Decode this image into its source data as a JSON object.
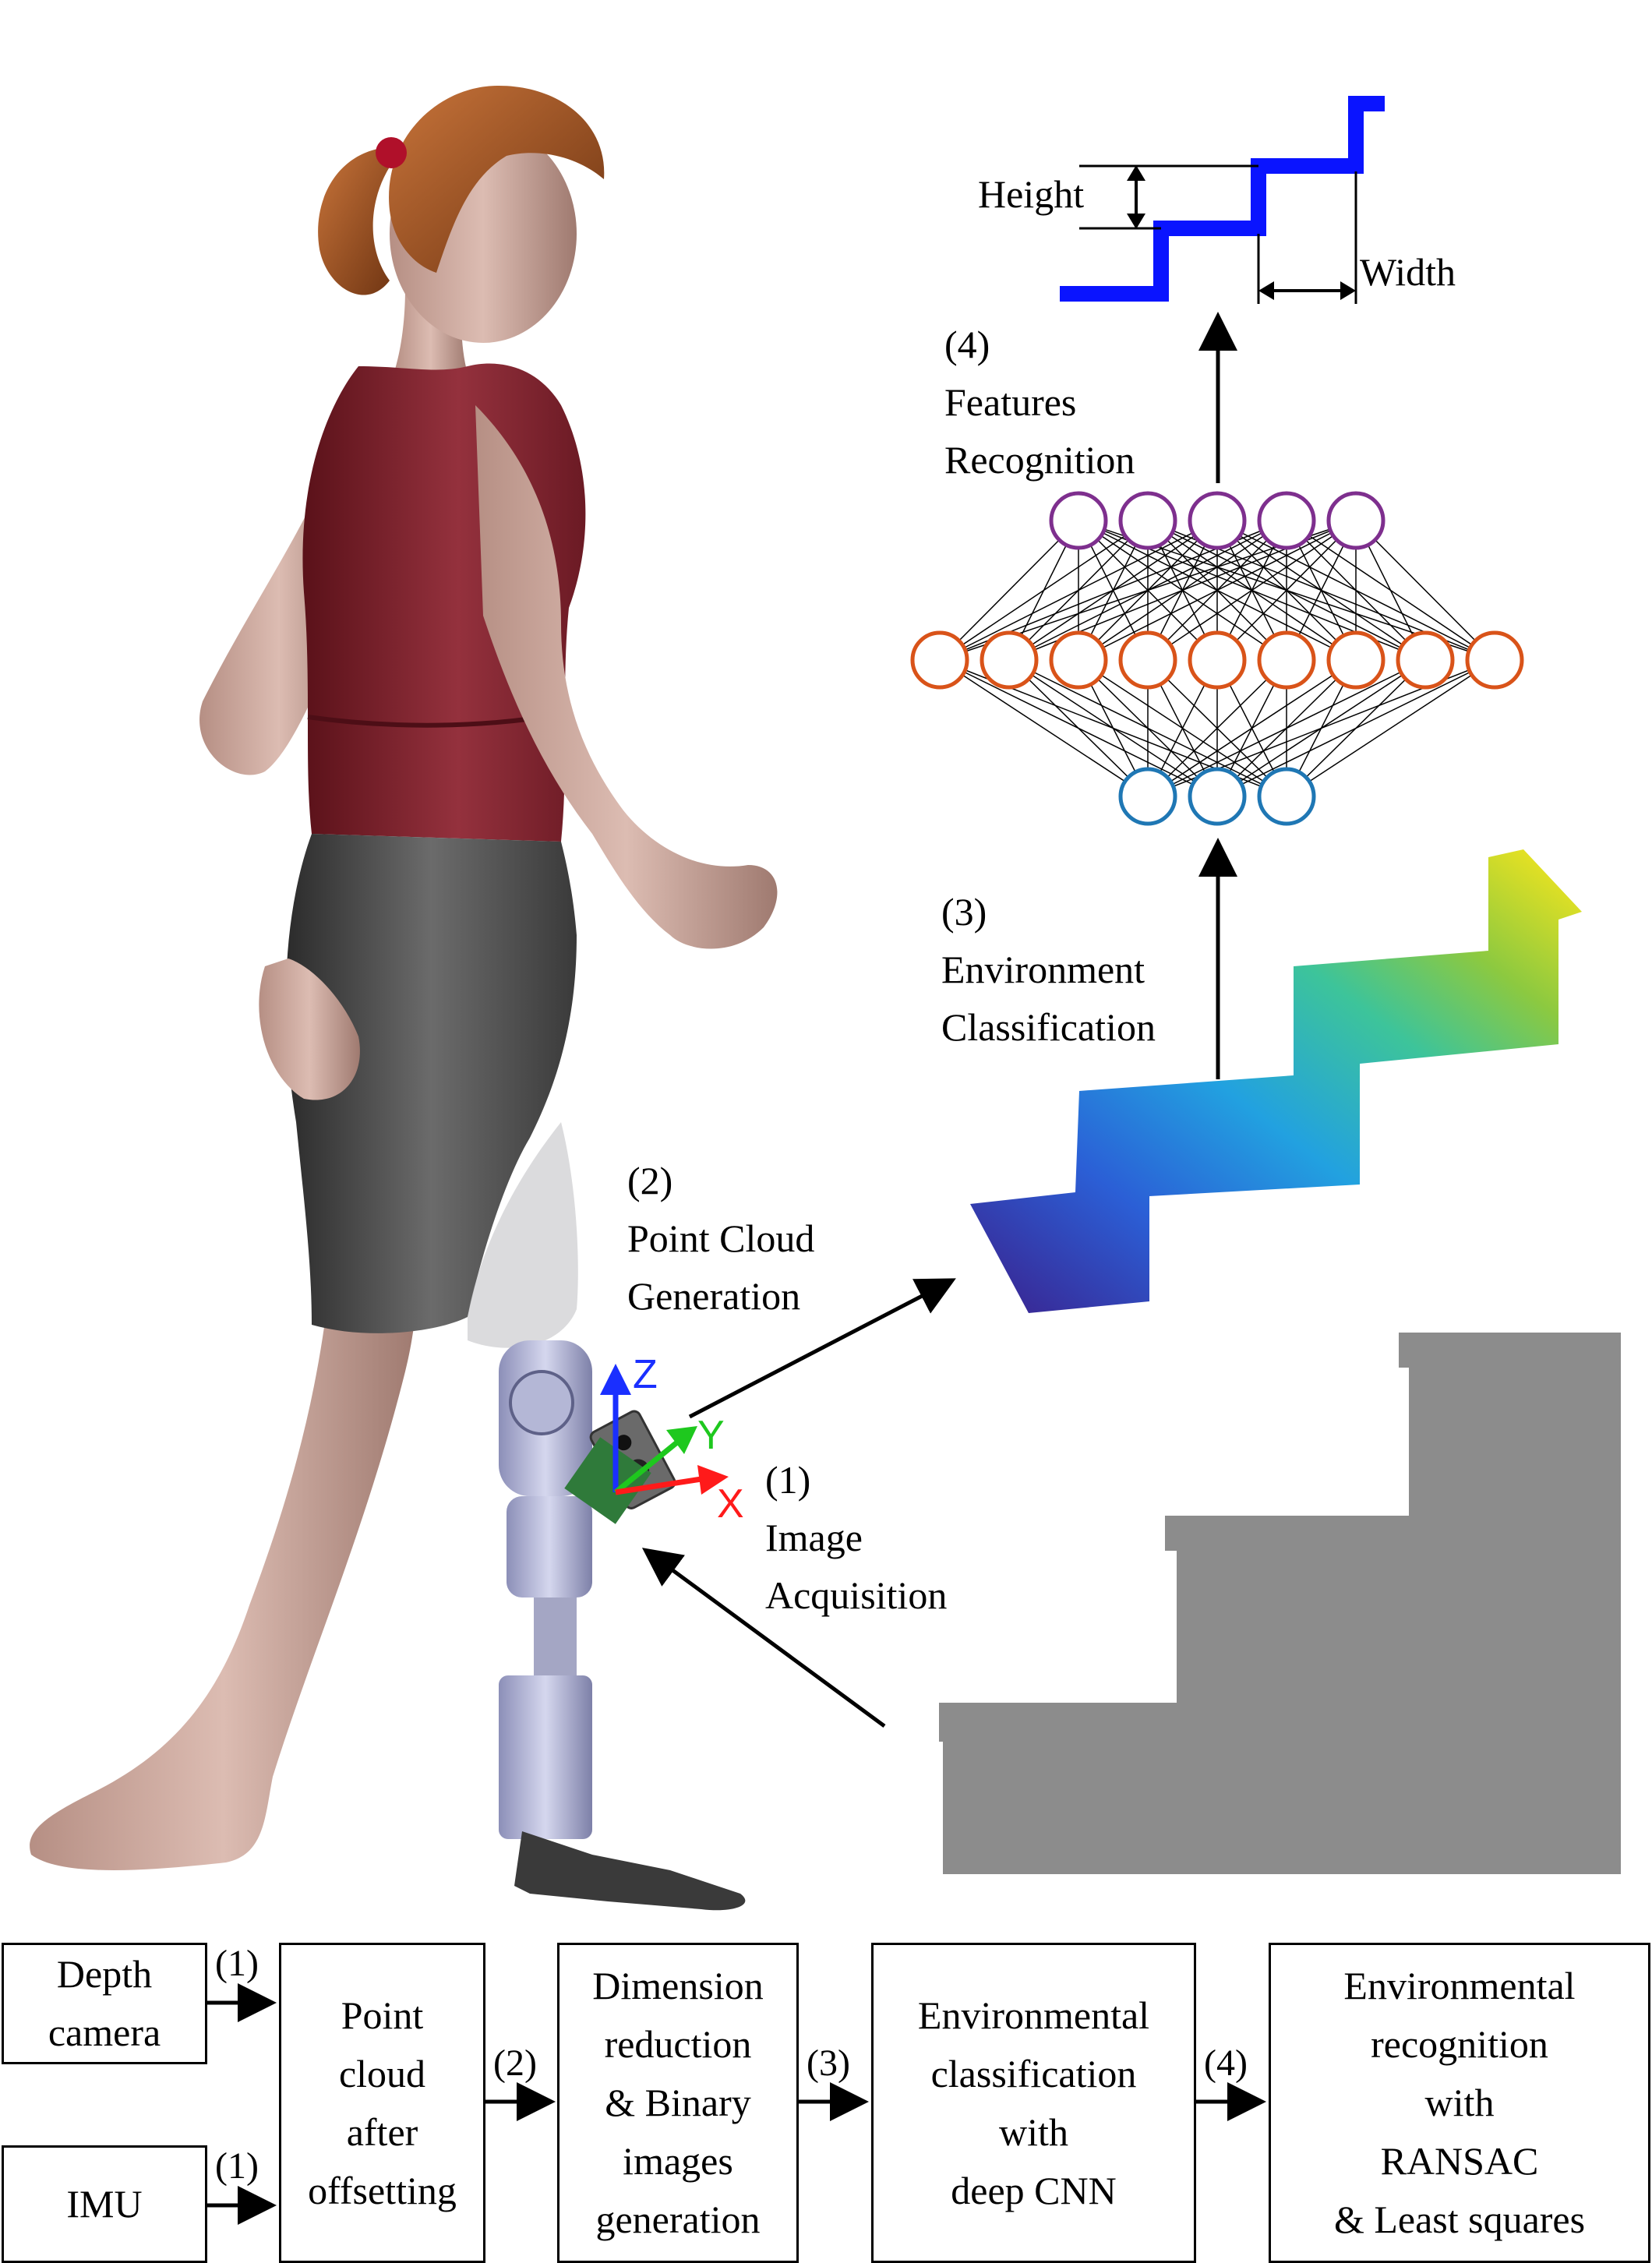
{
  "axes": {
    "x_label": "X",
    "y_label": "Y",
    "z_label": "Z",
    "x_color": "#ff1a1a",
    "y_color": "#1ec81e",
    "z_color": "#1a2fff"
  },
  "pipeline_labels": {
    "step1": [
      "(1)",
      "Image",
      "Acquisition"
    ],
    "step2": [
      "(2)",
      "Point Cloud",
      "Generation"
    ],
    "step3": [
      "(3)",
      "Environment",
      "Classification"
    ],
    "step4": [
      "(4)",
      "Features",
      "Recognition"
    ]
  },
  "stair_profile": {
    "height_label": "Height",
    "width_label": "Width",
    "color": "#0a14ff"
  },
  "network": {
    "layers": [
      {
        "name": "input",
        "count": 3,
        "color": "#1f77b4"
      },
      {
        "name": "hidden",
        "count": 9,
        "color": "#d95319"
      },
      {
        "name": "output",
        "count": 5,
        "color": "#7e2f8e"
      }
    ]
  },
  "flowchart": {
    "boxes": [
      {
        "id": "depth-camera",
        "text": "Depth\ncamera"
      },
      {
        "id": "imu",
        "text": "IMU"
      },
      {
        "id": "point-cloud",
        "text": "Point\ncloud\nafter\noffsetting"
      },
      {
        "id": "dimension-reduction",
        "text": "Dimension\nreduction\n& Binary\nimages\ngeneration"
      },
      {
        "id": "env-classification",
        "text": "Environmental\nclassification\nwith\ndeep CNN"
      },
      {
        "id": "env-recognition",
        "text": "Environmental\nrecognition\nwith\nRANSAC\n& Least squares"
      }
    ],
    "arrow_labels": [
      "(1)",
      "(1)",
      "(2)",
      "(3)",
      "(4)"
    ]
  }
}
